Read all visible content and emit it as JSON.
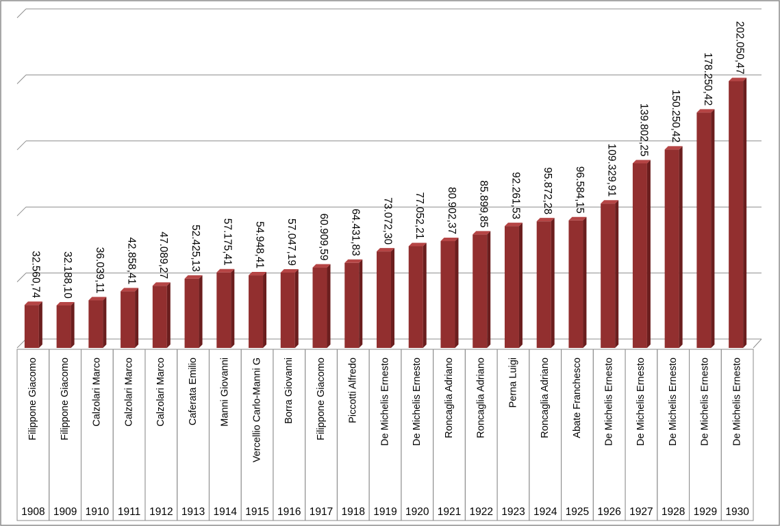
{
  "chart_data": {
    "type": "bar",
    "title": "",
    "xlabel": "",
    "ylabel": "",
    "ylim": [
      0,
      250000
    ],
    "grid": true,
    "legend": "none",
    "colors": {
      "bar": "#922f2f",
      "bar_side": "#6b1e1e",
      "bar_top": "#b54545",
      "gridline": "#8c8c8c"
    },
    "categories": [
      "1908",
      "1909",
      "1910",
      "1911",
      "1912",
      "1913",
      "1914",
      "1915",
      "1916",
      "1917",
      "1918",
      "1919",
      "1920",
      "1921",
      "1922",
      "1923",
      "1924",
      "1925",
      "1926",
      "1927",
      "1928",
      "1929",
      "1930"
    ],
    "names": [
      "Filippone Giacomo",
      "Filippone Giacomo",
      "Calzolari Marco",
      "Calzolari Marco",
      "Calzolari Marco",
      "Caferata Emilio",
      "Manni Giovanni",
      "Vercellio Carlo-Manni G",
      "Borra Giovanni",
      "Filippone Giacomo",
      "Piccotti Alfredo",
      "De Michelis Ernesto",
      "De Michelis Ernesto",
      "Roncaglia Adriano",
      "Roncaglia Adriano",
      "Perna Luigi",
      "Roncaglia Adriano",
      "Abate Franchesco",
      "De Michelis Ernesto",
      "De Michelis Ernesto",
      "De Michelis Ernesto",
      "De Michelis Ernesto",
      "De Michelis Ernesto"
    ],
    "values": [
      32560.74,
      32188.1,
      36039.11,
      42858.41,
      47089.27,
      52425.13,
      57175.41,
      54948.41,
      57047.19,
      60909.59,
      64431.83,
      73072.3,
      77052.21,
      80902.37,
      85899.85,
      92261.53,
      95872.28,
      96584.15,
      109329.91,
      139802.25,
      150250.42,
      178250.42,
      202050.47
    ],
    "data_labels": [
      "32.560,74",
      "32.188,10",
      "36.039,11",
      "42.858,41",
      "47.089,27",
      "52.425,13",
      "57.175,41",
      "54.948,41",
      "57.047,19",
      "60.909,59",
      "64.431,83",
      "73.072,30",
      "77.052,21",
      "80.902,37",
      "85.899,85",
      "92.261,53",
      "95.872,28",
      "96.584,15",
      "109.329,91",
      "139.802,25",
      "150.250,42",
      "178.250,42",
      "202.050,47"
    ]
  }
}
